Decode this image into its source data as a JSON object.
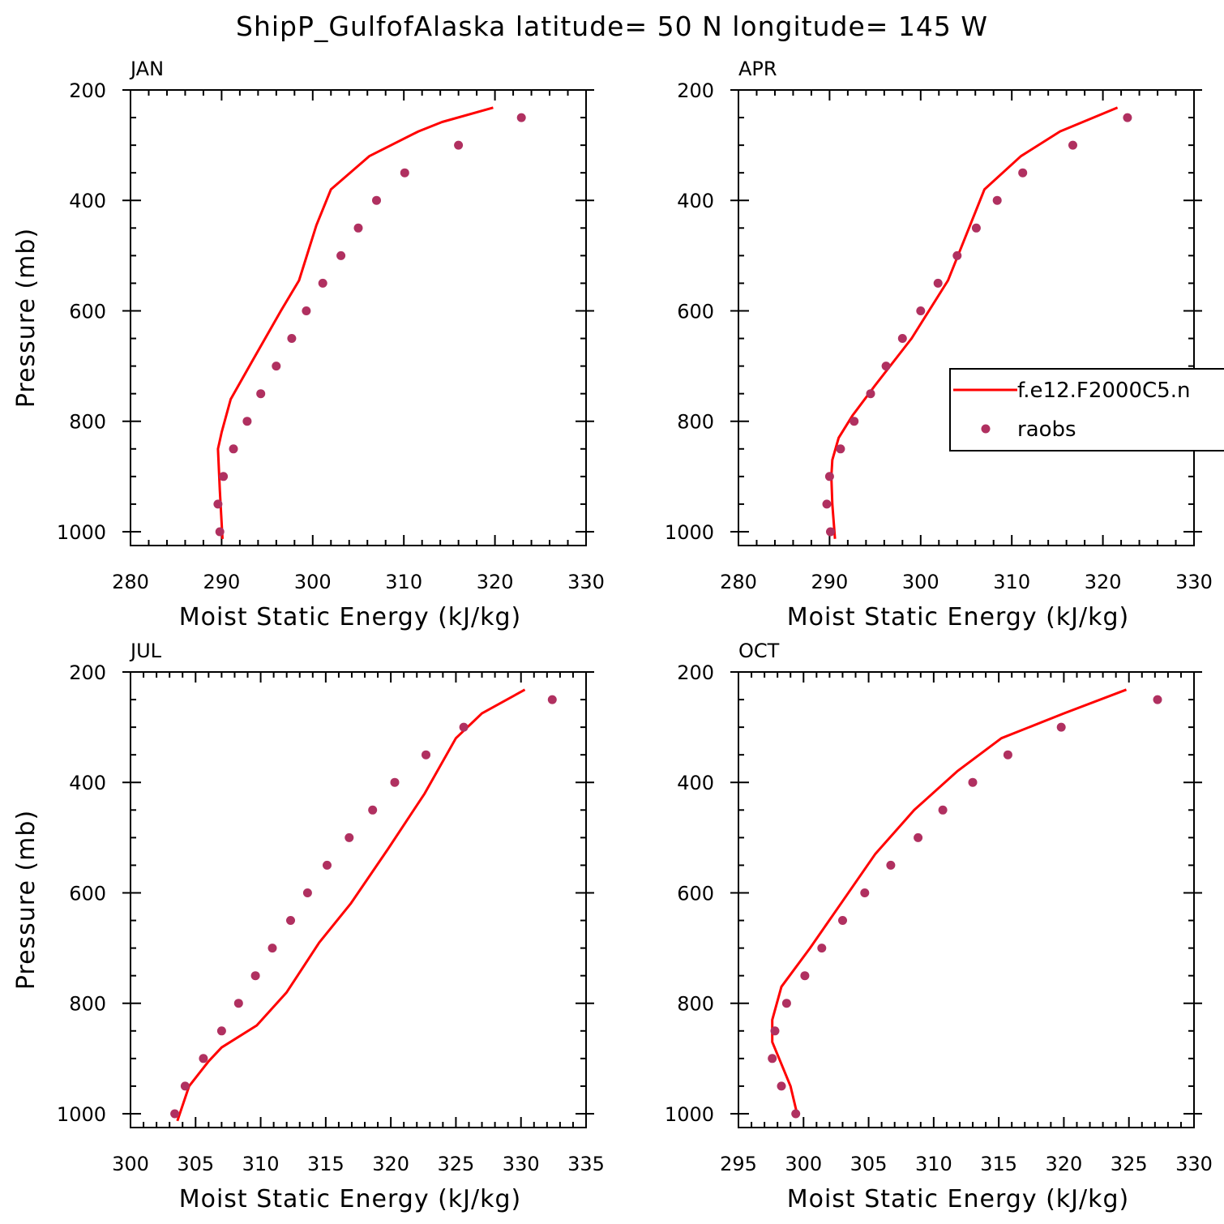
{
  "title": "ShipP_GulfofAlaska  latitude= 50 N longitude= 145 W",
  "colors": {
    "model": "#ff0000",
    "obs": "#b03060",
    "axis": "#000000"
  },
  "legend": {
    "model_label": "f.e12.F2000C5.n",
    "obs_label": "raobs"
  },
  "chart_data": [
    {
      "type": "line",
      "label": "JAN",
      "xlabel": "Moist Static Energy (kJ/kg)",
      "ylabel": "Pressure (mb)",
      "xlim": [
        280,
        330
      ],
      "ylim": [
        1025,
        200
      ],
      "xticks": [
        280,
        290,
        300,
        310,
        320,
        330
      ],
      "yticks": [
        200,
        400,
        600,
        800,
        1000
      ],
      "model": {
        "x": [
          290.1,
          289.8,
          289.6,
          290.0,
          291.0,
          293.4,
          296.5,
          298.5,
          300.4,
          302.0,
          306.2,
          311.6,
          314.2,
          319.8
        ],
        "y": [
          1013,
          925,
          850,
          820,
          760,
          690,
          600,
          545,
          445,
          380,
          320,
          275,
          258,
          232
        ]
      },
      "obs": {
        "x": [
          289.8,
          289.6,
          290.2,
          291.3,
          292.8,
          294.3,
          296.0,
          297.7,
          299.3,
          301.1,
          303.1,
          305.0,
          307.0,
          310.1,
          316.0,
          322.9
        ],
        "y": [
          1000,
          950,
          900,
          850,
          800,
          750,
          700,
          650,
          600,
          550,
          500,
          450,
          400,
          350,
          300,
          250
        ]
      }
    },
    {
      "type": "line",
      "label": "APR",
      "xlabel": "Moist Static Energy (kJ/kg)",
      "ylabel": "",
      "xlim": [
        280,
        330
      ],
      "ylim": [
        1025,
        200
      ],
      "xticks": [
        280,
        290,
        300,
        310,
        320,
        330
      ],
      "yticks": [
        200,
        400,
        600,
        800,
        1000
      ],
      "model": {
        "x": [
          290.6,
          290.3,
          290.2,
          290.3,
          291.0,
          292.5,
          295.0,
          299.0,
          303.0,
          307.0,
          311.0,
          315.3,
          321.6
        ],
        "y": [
          1013,
          950,
          900,
          870,
          830,
          790,
          735,
          650,
          545,
          380,
          320,
          275,
          232
        ]
      },
      "obs": {
        "x": [
          290.1,
          289.7,
          290.0,
          291.2,
          292.7,
          294.5,
          296.2,
          298.0,
          300.0,
          301.9,
          304.0,
          306.1,
          308.4,
          311.2,
          316.7,
          322.7
        ],
        "y": [
          1000,
          950,
          900,
          850,
          800,
          750,
          700,
          650,
          600,
          550,
          500,
          450,
          400,
          350,
          300,
          250
        ]
      }
    },
    {
      "type": "line",
      "label": "JUL",
      "xlabel": "Moist Static Energy (kJ/kg)",
      "ylabel": "Pressure (mb)",
      "xlim": [
        300,
        335
      ],
      "ylim": [
        1025,
        200
      ],
      "xticks": [
        300,
        305,
        310,
        315,
        320,
        325,
        330,
        335
      ],
      "yticks": [
        200,
        400,
        600,
        800,
        1000
      ],
      "model": {
        "x": [
          303.6,
          304.5,
          306.0,
          307.0,
          309.7,
          312.0,
          314.5,
          316.9,
          319.8,
          322.6,
          325.0,
          327.0,
          330.3
        ],
        "y": [
          1013,
          950,
          905,
          880,
          840,
          780,
          690,
          620,
          520,
          420,
          320,
          275,
          232
        ]
      },
      "obs": {
        "x": [
          303.4,
          304.2,
          305.6,
          307.0,
          308.3,
          309.6,
          310.9,
          312.3,
          313.6,
          315.1,
          316.8,
          318.6,
          320.3,
          322.7,
          325.6,
          332.4
        ],
        "y": [
          1000,
          950,
          900,
          850,
          800,
          750,
          700,
          650,
          600,
          550,
          500,
          450,
          400,
          350,
          300,
          250
        ]
      }
    },
    {
      "type": "line",
      "label": "OCT",
      "xlabel": "Moist Static Energy (kJ/kg)",
      "ylabel": "",
      "xlim": [
        295,
        330
      ],
      "ylim": [
        1025,
        200
      ],
      "xticks": [
        295,
        300,
        305,
        310,
        315,
        320,
        325,
        330
      ],
      "yticks": [
        200,
        400,
        600,
        800,
        1000
      ],
      "model": {
        "x": [
          299.5,
          299.0,
          298.3,
          297.6,
          297.6,
          298.3,
          300.5,
          303.0,
          305.5,
          308.5,
          311.8,
          315.2,
          320.0,
          324.8
        ],
        "y": [
          1000,
          950,
          910,
          870,
          830,
          770,
          700,
          615,
          530,
          450,
          380,
          320,
          275,
          232
        ]
      },
      "obs": {
        "x": [
          299.4,
          298.3,
          297.6,
          297.8,
          298.7,
          300.1,
          301.4,
          303.0,
          304.7,
          306.7,
          308.8,
          310.7,
          313.0,
          315.7,
          319.8,
          327.2
        ],
        "y": [
          1000,
          950,
          900,
          850,
          800,
          750,
          700,
          650,
          600,
          550,
          500,
          450,
          400,
          350,
          300,
          250
        ]
      }
    }
  ]
}
